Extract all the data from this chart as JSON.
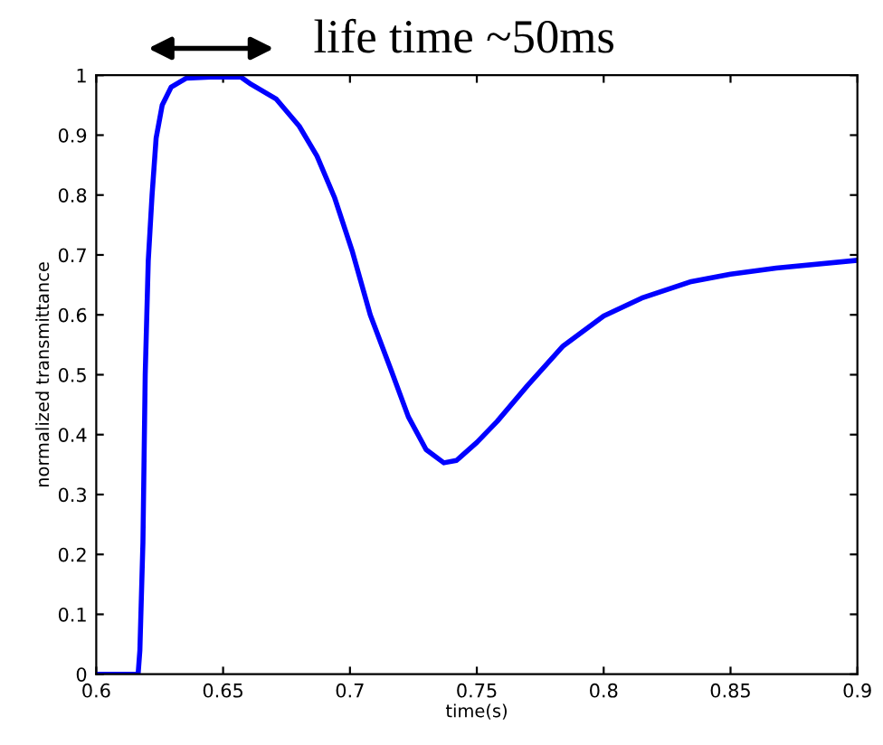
{
  "chart_data": {
    "type": "line",
    "xlabel": "time(s)",
    "ylabel": "normalized transmittance",
    "annotations": [
      "life time ~50ms"
    ],
    "x": [
      0.6,
      0.6165,
      0.6172,
      0.6184,
      0.6193,
      0.6205,
      0.622,
      0.6236,
      0.626,
      0.6295,
      0.6354,
      0.645,
      0.657,
      0.661,
      0.671,
      0.68,
      0.687,
      0.694,
      0.701,
      0.708,
      0.716,
      0.723,
      0.73,
      0.737,
      0.742,
      0.75,
      0.758,
      0.77,
      0.784,
      0.8,
      0.815,
      0.834,
      0.85,
      0.868,
      0.9
    ],
    "series": [
      {
        "color": "#0000ff",
        "values": [
          0,
          0,
          0.04,
          0.22,
          0.5,
          0.69,
          0.8,
          0.895,
          0.95,
          0.98,
          0.995,
          0.997,
          0.997,
          0.985,
          0.96,
          0.915,
          0.865,
          0.795,
          0.705,
          0.6,
          0.51,
          0.43,
          0.375,
          0.353,
          0.357,
          0.387,
          0.422,
          0.482,
          0.548,
          0.598,
          0.628,
          0.655,
          0.668,
          0.678,
          0.691
        ]
      }
    ],
    "xlim": [
      0.6,
      0.9
    ],
    "ylim": [
      0,
      1
    ],
    "xticks": [
      0.6,
      0.65,
      0.7,
      0.75,
      0.8,
      0.85,
      0.9
    ],
    "yticks": [
      0,
      0.1,
      0.2,
      0.3,
      0.4,
      0.5,
      0.6,
      0.7,
      0.8,
      0.9,
      1
    ],
    "grid": false,
    "legend": false,
    "marker": "none",
    "line_style": "solid"
  }
}
